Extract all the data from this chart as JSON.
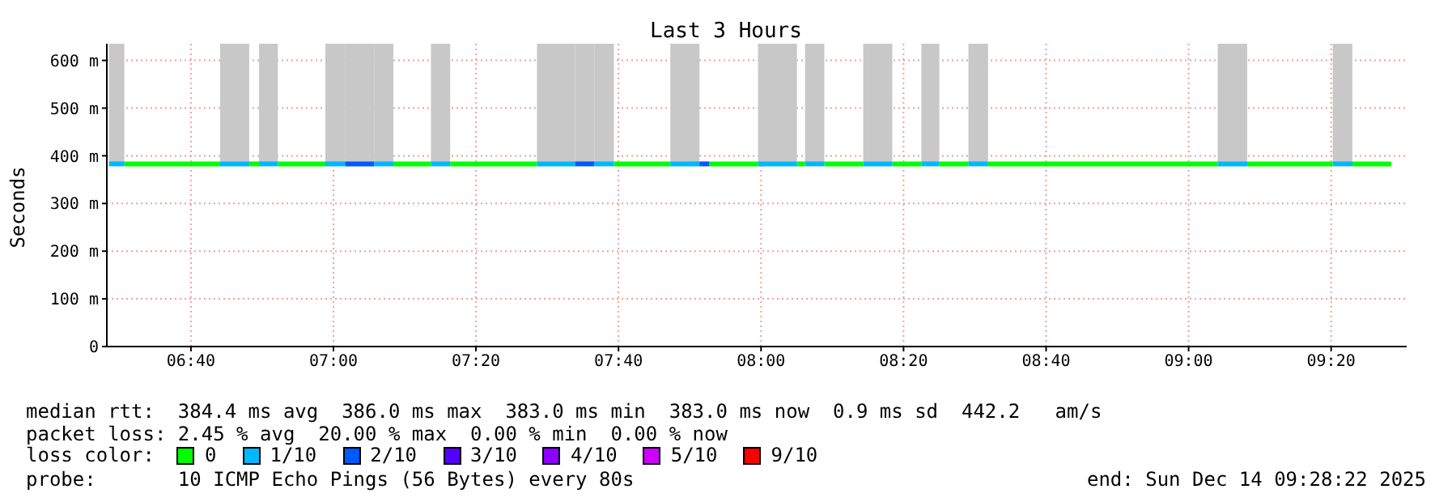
{
  "chart_data": {
    "type": "line",
    "title": "Last 3 Hours",
    "ylabel": "Seconds",
    "legend_title": "loss color:",
    "legend": "bottom",
    "grid": true,
    "xlim": [
      6.47,
      9.51
    ],
    "ylim": [
      0,
      635
    ],
    "xticks": [
      {
        "value": 6.6667,
        "label": "06:40"
      },
      {
        "value": 7,
        "label": "07:00"
      },
      {
        "value": 7.3333,
        "label": "07:20"
      },
      {
        "value": 7.6667,
        "label": "07:40"
      },
      {
        "value": 8,
        "label": "08:00"
      },
      {
        "value": 8.3333,
        "label": "08:20"
      },
      {
        "value": 8.6667,
        "label": "08:40"
      },
      {
        "value": 9,
        "label": "09:00"
      },
      {
        "value": 9.3333,
        "label": "09:20"
      }
    ],
    "yticks": [
      0,
      {
        "value": 100,
        "label": "100 m"
      },
      {
        "value": 200,
        "label": "200 m"
      },
      {
        "value": 300,
        "label": "300 m"
      },
      {
        "value": 400,
        "label": "400 m"
      },
      {
        "value": 500,
        "label": "500 m"
      },
      {
        "value": 600,
        "label": "600 m"
      }
    ],
    "series": [
      {
        "name": "0",
        "color": "#00ff00",
        "x": [
          6.511,
          6.735
        ],
        "values": [
          383,
          383
        ]
      },
      {
        "name": "1/10",
        "color": "#00b8ff",
        "x": [
          6.475,
          6.511
        ],
        "values": [
          383,
          383
        ],
        "lower": [
          383,
          383
        ],
        "upper": [
          635,
          635
        ]
      },
      {
        "name": "2/10",
        "color": "#0059ff",
        "x": [
          7.027,
          7.095
        ],
        "values": [
          383,
          383
        ],
        "lower": [
          383,
          383
        ],
        "upper": [
          635,
          635
        ]
      },
      {
        "name": "3/10",
        "color": "#5500ff"
      },
      {
        "name": "4/10",
        "color": "#8c00ff"
      },
      {
        "name": "5/10",
        "color": "#d000ff"
      },
      {
        "name": "9/10",
        "color": "#ff0000"
      },
      {
        "color": "#00ff00",
        "x": [
          6.803,
          6.826
        ],
        "values": [
          383,
          383
        ]
      },
      {
        "color": "#00ff00",
        "x": [
          6.87,
          6.981
        ],
        "values": [
          383,
          383
        ]
      },
      {
        "color": "#00ff00",
        "x": [
          7.14,
          7.228
        ],
        "values": [
          383,
          383
        ]
      },
      {
        "color": "#00ff00",
        "x": [
          7.273,
          7.476
        ],
        "values": [
          383,
          383
        ]
      },
      {
        "color": "#00ff00",
        "x": [
          7.656,
          7.788
        ],
        "values": [
          383,
          383
        ]
      },
      {
        "color": "#00ff00",
        "x": [
          7.879,
          7.993
        ],
        "values": [
          383,
          383
        ]
      },
      {
        "color": "#00ff00",
        "x": [
          8.084,
          8.103
        ],
        "values": [
          383,
          383
        ]
      },
      {
        "color": "#00ff00",
        "x": [
          8.148,
          8.239
        ],
        "values": [
          383,
          383
        ]
      },
      {
        "color": "#00ff00",
        "x": [
          8.307,
          8.375
        ],
        "values": [
          383,
          383
        ]
      },
      {
        "color": "#00ff00",
        "x": [
          8.417,
          8.485
        ],
        "values": [
          383,
          383
        ]
      },
      {
        "color": "#00ff00",
        "x": [
          8.531,
          9.068
        ],
        "values": [
          383,
          383
        ]
      },
      {
        "color": "#00ff00",
        "x": [
          9.137,
          9.337
        ],
        "values": [
          383,
          383
        ]
      },
      {
        "color": "#00ff00",
        "x": [
          9.383,
          9.474
        ],
        "values": [
          383,
          383
        ]
      },
      {
        "color": "#00b8ff",
        "x": [
          6.735,
          6.803
        ],
        "values": [
          383,
          383
        ],
        "lower": [
          383,
          383
        ],
        "upper": [
          635,
          635
        ]
      },
      {
        "color": "#00b8ff",
        "x": [
          6.826,
          6.87
        ],
        "values": [
          383,
          383
        ],
        "lower": [
          383,
          383
        ],
        "upper": [
          635,
          635
        ]
      },
      {
        "color": "#00b8ff",
        "x": [
          6.981,
          7.027
        ],
        "values": [
          383,
          383
        ],
        "lower": [
          383,
          383
        ],
        "upper": [
          635,
          635
        ]
      },
      {
        "color": "#00b8ff",
        "x": [
          7.095,
          7.14
        ],
        "values": [
          383,
          383
        ],
        "lower": [
          383,
          383
        ],
        "upper": [
          635,
          635
        ]
      },
      {
        "color": "#00b8ff",
        "x": [
          7.228,
          7.273
        ],
        "values": [
          383,
          383
        ],
        "lower": [
          383,
          383
        ],
        "upper": [
          635,
          635
        ]
      },
      {
        "color": "#00b8ff",
        "x": [
          7.476,
          7.565
        ],
        "values": [
          383,
          383
        ],
        "lower": [
          383,
          383
        ],
        "upper": [
          635,
          635
        ]
      },
      {
        "color": "#00b8ff",
        "x": [
          7.61,
          7.656
        ],
        "values": [
          383,
          383
        ],
        "lower": [
          383,
          383
        ],
        "upper": [
          635,
          635
        ]
      },
      {
        "color": "#00b8ff",
        "x": [
          7.788,
          7.856
        ],
        "values": [
          383,
          383
        ],
        "lower": [
          383,
          383
        ],
        "upper": [
          635,
          635
        ]
      },
      {
        "color": "#00b8ff",
        "x": [
          7.993,
          8.084
        ],
        "values": [
          383,
          383
        ],
        "lower": [
          383,
          383
        ],
        "upper": [
          635,
          635
        ]
      },
      {
        "color": "#00b8ff",
        "x": [
          8.103,
          8.148
        ],
        "values": [
          383,
          383
        ],
        "lower": [
          383,
          383
        ],
        "upper": [
          635,
          635
        ]
      },
      {
        "color": "#00b8ff",
        "x": [
          8.239,
          8.307
        ],
        "values": [
          383,
          383
        ],
        "lower": [
          383,
          383
        ],
        "upper": [
          635,
          635
        ]
      },
      {
        "color": "#00b8ff",
        "x": [
          8.375,
          8.417
        ],
        "values": [
          383,
          383
        ],
        "lower": [
          383,
          383
        ],
        "upper": [
          635,
          635
        ]
      },
      {
        "color": "#00b8ff",
        "x": [
          8.485,
          8.531
        ],
        "values": [
          383,
          383
        ],
        "lower": [
          383,
          383
        ],
        "upper": [
          635,
          635
        ]
      },
      {
        "color": "#00b8ff",
        "x": [
          9.068,
          9.137
        ],
        "values": [
          383,
          383
        ],
        "lower": [
          383,
          383
        ],
        "upper": [
          635,
          635
        ]
      },
      {
        "color": "#00b8ff",
        "x": [
          9.337,
          9.383
        ],
        "values": [
          383,
          383
        ],
        "lower": [
          383,
          383
        ],
        "upper": [
          635,
          635
        ]
      },
      {
        "color": "#0059ff",
        "x": [
          7.565,
          7.61
        ],
        "values": [
          383,
          383
        ],
        "lower": [
          383,
          383
        ],
        "upper": [
          635,
          635
        ]
      },
      {
        "color": "#0059ff",
        "x": [
          7.856,
          7.879
        ],
        "values": [
          383,
          383
        ]
      }
    ],
    "annotations": [
      "median rtt:  384.4 ms avg  386.0 ms max  383.0 ms min  383.0 ms now  0.9 ms sd  442.2   am/s",
      "packet loss: 2.45 % avg  20.00 % max  0.00 % min  0.00 % now",
      "probe:       10 ICMP Echo Pings (56 Bytes) every 80s",
      "end: Sun Dec 14 09:28:22 2025"
    ]
  }
}
